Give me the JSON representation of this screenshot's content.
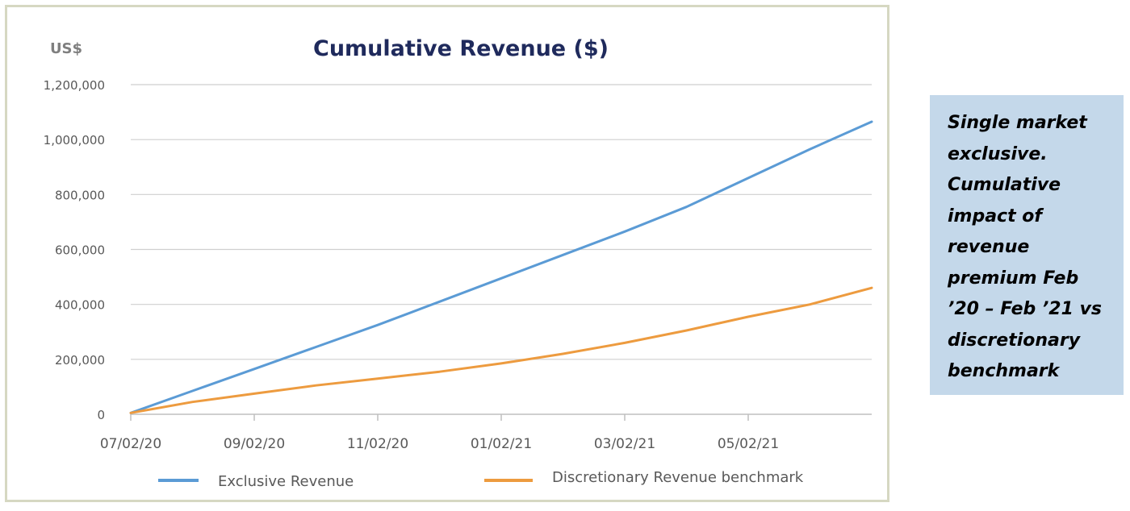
{
  "chart_data": {
    "type": "line",
    "title": "Cumulative Revenue ($)",
    "ylabel": "US$",
    "xlabel": "",
    "ylim": [
      0,
      1200000
    ],
    "y_ticks": [
      0,
      200000,
      400000,
      600000,
      800000,
      1000000,
      1200000
    ],
    "y_tick_labels": [
      "0",
      "200,000",
      "400,000",
      "600,000",
      "800,000",
      "1,000,000",
      "1,200,000"
    ],
    "x_tick_labels": [
      "07/02/20",
      "09/02/20",
      "11/02/20",
      "01/02/21",
      "03/02/21",
      "05/02/21"
    ],
    "x_tick_index": [
      0,
      2,
      4,
      6,
      8,
      10
    ],
    "x": [
      "07/02/20",
      "08/02/20",
      "09/02/20",
      "10/02/20",
      "11/02/20",
      "12/02/20",
      "01/02/21",
      "02/02/21",
      "03/02/21",
      "04/02/21",
      "05/02/21",
      "06/02/21",
      "07/02/21"
    ],
    "series": [
      {
        "name": "Exclusive Revenue",
        "color": "#5b9bd5",
        "values": [
          5000,
          85000,
          165000,
          245000,
          325000,
          410000,
          495000,
          580000,
          665000,
          755000,
          860000,
          965000,
          1065000
        ]
      },
      {
        "name": "Discretionary Revenue benchmark",
        "color": "#ed9b3f",
        "values": [
          5000,
          45000,
          75000,
          105000,
          130000,
          155000,
          185000,
          220000,
          260000,
          305000,
          355000,
          400000,
          460000
        ]
      }
    ],
    "grid": true,
    "legend_position": "bottom"
  },
  "note": {
    "lines": [
      "Single market",
      "exclusive.",
      "Cumulative",
      "impact of",
      "revenue",
      "premium Feb",
      "’20 – Feb ’21 vs",
      "discretionary",
      "benchmark"
    ]
  }
}
